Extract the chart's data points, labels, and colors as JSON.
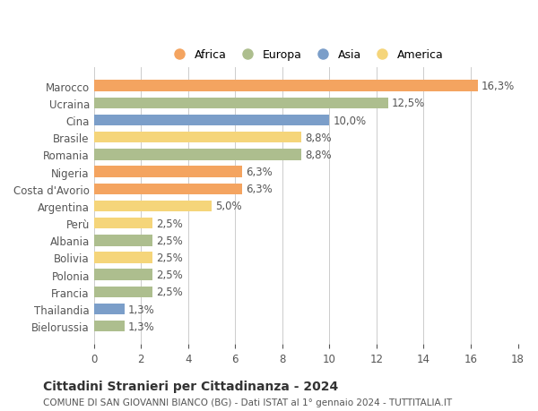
{
  "countries": [
    "Bielorussia",
    "Thailandia",
    "Francia",
    "Polonia",
    "Bolivia",
    "Albania",
    "Perù",
    "Argentina",
    "Costa d'Avorio",
    "Nigeria",
    "Romania",
    "Brasile",
    "Cina",
    "Ucraina",
    "Marocco"
  ],
  "values": [
    1.3,
    1.3,
    2.5,
    2.5,
    2.5,
    2.5,
    2.5,
    5.0,
    6.3,
    6.3,
    8.8,
    8.8,
    10.0,
    12.5,
    16.3
  ],
  "continents": [
    "Europa",
    "Asia",
    "Europa",
    "Europa",
    "America",
    "Europa",
    "America",
    "America",
    "Africa",
    "Africa",
    "Europa",
    "America",
    "Asia",
    "Europa",
    "Africa"
  ],
  "continent_colors": {
    "Africa": "#F4A460",
    "Europa": "#ADBE8E",
    "Asia": "#7B9EC9",
    "America": "#F5D57A"
  },
  "legend_order": [
    "Africa",
    "Europa",
    "Asia",
    "America"
  ],
  "title": "Cittadini Stranieri per Cittadinanza - 2024",
  "subtitle": "COMUNE DI SAN GIOVANNI BIANCO (BG) - Dati ISTAT al 1° gennaio 2024 - TUTTITALIA.IT",
  "xlim": [
    0,
    18
  ],
  "xticks": [
    0,
    2,
    4,
    6,
    8,
    10,
    12,
    14,
    16,
    18
  ],
  "background_color": "#FFFFFF",
  "bar_height": 0.65,
  "grid_color": "#CCCCCC",
  "label_fontsize": 8.5,
  "tick_fontsize": 8.5,
  "title_fontsize": 10,
  "subtitle_fontsize": 7.5
}
